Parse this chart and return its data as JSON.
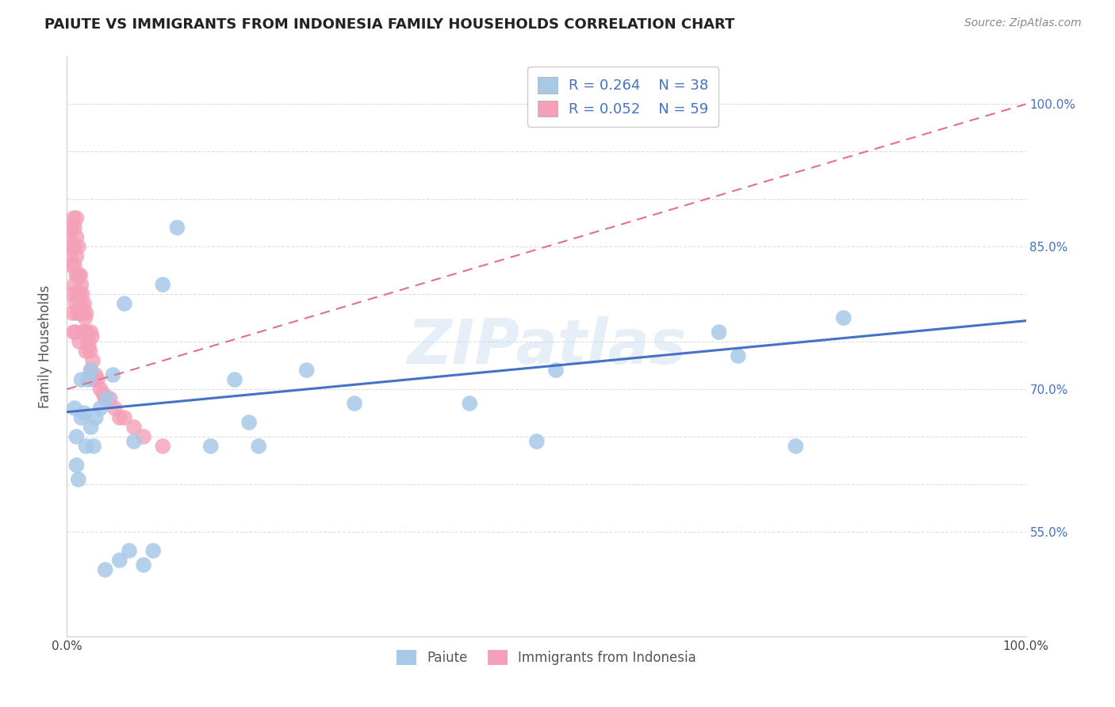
{
  "title": "PAIUTE VS IMMIGRANTS FROM INDONESIA FAMILY HOUSEHOLDS CORRELATION CHART",
  "source": "Source: ZipAtlas.com",
  "ylabel": "Family Households",
  "xlabel": "",
  "legend_label_1": "Paiute",
  "legend_label_2": "Immigrants from Indonesia",
  "watermark": "ZIPatlas",
  "r1": 0.264,
  "n1": 38,
  "r2": 0.052,
  "n2": 59,
  "color1": "#a8c8e8",
  "color2": "#f4a0b8",
  "line_color1": "#4472c4",
  "line_color2": "#e07090",
  "xlim": [
    0.0,
    1.0
  ],
  "ylim": [
    0.44,
    1.05
  ],
  "ytick_positions": [
    0.55,
    0.6,
    0.65,
    0.7,
    0.75,
    0.8,
    0.85,
    0.9,
    0.95,
    1.0
  ],
  "ytick_labels": [
    "55.0%",
    "",
    "",
    "70.0%",
    "",
    "",
    "85.0%",
    "",
    "",
    "100.0%"
  ],
  "xtick_positions": [
    0.0,
    0.1,
    0.2,
    0.3,
    0.4,
    0.5,
    0.6,
    0.7,
    0.8,
    0.9,
    1.0
  ],
  "xtick_labels": [
    "0.0%",
    "",
    "",
    "",
    "",
    "",
    "",
    "",
    "",
    "",
    "100.0%"
  ],
  "paiute_x": [
    0.008,
    0.01,
    0.01,
    0.012,
    0.015,
    0.015,
    0.018,
    0.02,
    0.022,
    0.025,
    0.025,
    0.028,
    0.03,
    0.035,
    0.04,
    0.042,
    0.048,
    0.055,
    0.06,
    0.065,
    0.07,
    0.08,
    0.09,
    0.1,
    0.115,
    0.15,
    0.175,
    0.19,
    0.2,
    0.25,
    0.3,
    0.42,
    0.49,
    0.51,
    0.68,
    0.7,
    0.76,
    0.81
  ],
  "paiute_y": [
    0.68,
    0.65,
    0.62,
    0.605,
    0.67,
    0.71,
    0.675,
    0.64,
    0.71,
    0.66,
    0.72,
    0.64,
    0.67,
    0.68,
    0.51,
    0.69,
    0.715,
    0.52,
    0.79,
    0.53,
    0.645,
    0.515,
    0.53,
    0.81,
    0.87,
    0.64,
    0.71,
    0.665,
    0.64,
    0.72,
    0.685,
    0.685,
    0.645,
    0.72,
    0.76,
    0.735,
    0.64,
    0.775
  ],
  "indonesia_x": [
    0.003,
    0.004,
    0.005,
    0.005,
    0.005,
    0.006,
    0.006,
    0.007,
    0.007,
    0.008,
    0.008,
    0.008,
    0.008,
    0.009,
    0.009,
    0.01,
    0.01,
    0.01,
    0.01,
    0.011,
    0.011,
    0.012,
    0.012,
    0.013,
    0.013,
    0.013,
    0.014,
    0.014,
    0.015,
    0.015,
    0.016,
    0.016,
    0.017,
    0.018,
    0.018,
    0.019,
    0.02,
    0.02,
    0.021,
    0.022,
    0.023,
    0.024,
    0.025,
    0.025,
    0.026,
    0.027,
    0.028,
    0.03,
    0.032,
    0.035,
    0.038,
    0.04,
    0.045,
    0.05,
    0.055,
    0.06,
    0.07,
    0.08,
    0.1
  ],
  "indonesia_y": [
    0.86,
    0.84,
    0.87,
    0.83,
    0.8,
    0.85,
    0.78,
    0.88,
    0.76,
    0.87,
    0.85,
    0.83,
    0.81,
    0.79,
    0.76,
    0.88,
    0.86,
    0.84,
    0.82,
    0.8,
    0.78,
    0.85,
    0.82,
    0.8,
    0.78,
    0.75,
    0.82,
    0.79,
    0.81,
    0.78,
    0.8,
    0.76,
    0.785,
    0.79,
    0.76,
    0.775,
    0.78,
    0.74,
    0.76,
    0.75,
    0.745,
    0.74,
    0.76,
    0.72,
    0.755,
    0.73,
    0.71,
    0.715,
    0.71,
    0.7,
    0.695,
    0.69,
    0.69,
    0.68,
    0.67,
    0.67,
    0.66,
    0.65,
    0.64
  ]
}
